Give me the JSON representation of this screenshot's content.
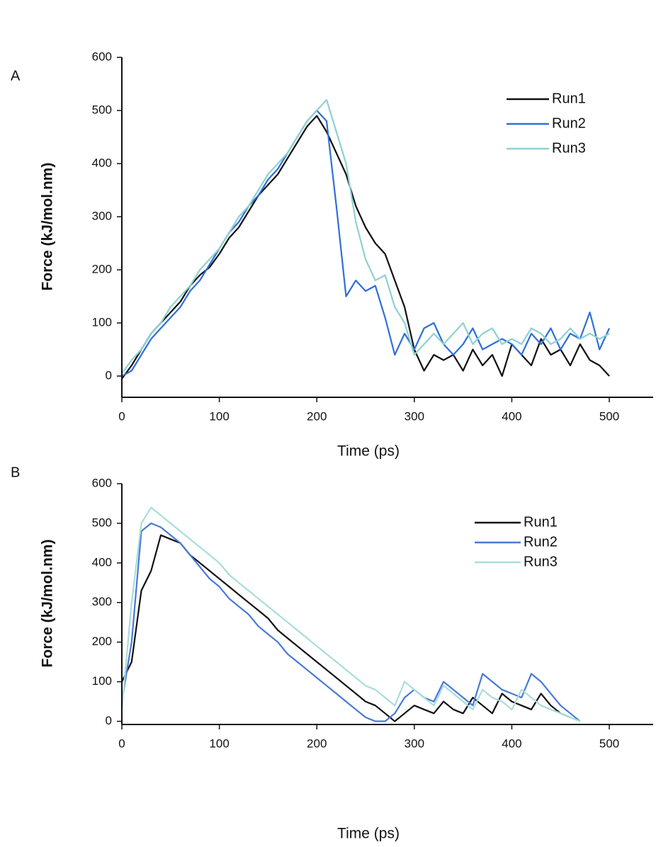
{
  "chart_data": [
    {
      "type": "line",
      "panel_label": "A",
      "xlabel": "Time (ps)",
      "ylabel": "Force (kJ/mol.nm)",
      "x": [
        0,
        10,
        20,
        30,
        40,
        50,
        60,
        70,
        80,
        90,
        100,
        110,
        120,
        130,
        140,
        150,
        160,
        170,
        180,
        190,
        200,
        210,
        220,
        230,
        240,
        250,
        260,
        270,
        280,
        290,
        300,
        310,
        320,
        330,
        340,
        350,
        360,
        370,
        380,
        390,
        400,
        410,
        420,
        430,
        440,
        450,
        460,
        470,
        480,
        490,
        500
      ],
      "series": [
        {
          "name": "Run1",
          "color": "#111111",
          "values": [
            -5,
            20,
            50,
            80,
            100,
            120,
            140,
            170,
            190,
            205,
            230,
            260,
            280,
            310,
            340,
            360,
            380,
            410,
            440,
            470,
            490,
            460,
            420,
            380,
            320,
            280,
            250,
            230,
            180,
            130,
            50,
            10,
            40,
            30,
            40,
            10,
            50,
            20,
            40,
            0,
            60,
            40,
            20,
            70,
            40,
            50,
            20,
            60,
            30,
            20,
            0
          ]
        },
        {
          "name": "Run2",
          "color": "#2f6fd8",
          "values": [
            0,
            10,
            40,
            70,
            90,
            110,
            130,
            160,
            180,
            210,
            240,
            270,
            290,
            320,
            340,
            370,
            390,
            420,
            450,
            480,
            500,
            480,
            320,
            150,
            180,
            160,
            170,
            110,
            40,
            80,
            50,
            90,
            100,
            60,
            40,
            60,
            90,
            50,
            60,
            70,
            60,
            40,
            80,
            60,
            90,
            50,
            80,
            70,
            120,
            50,
            90
          ]
        },
        {
          "name": "Run3",
          "color": "#8fd1d1",
          "values": [
            5,
            30,
            50,
            80,
            100,
            130,
            150,
            170,
            200,
            220,
            240,
            270,
            300,
            320,
            350,
            380,
            400,
            420,
            450,
            480,
            500,
            520,
            460,
            400,
            290,
            220,
            180,
            190,
            130,
            100,
            40,
            60,
            80,
            60,
            80,
            100,
            60,
            80,
            90,
            60,
            70,
            60,
            90,
            80,
            60,
            70,
            90,
            70,
            80,
            70,
            80
          ]
        }
      ],
      "xlim": [
        0,
        545
      ],
      "ylim": [
        -40,
        600
      ],
      "xticks": [
        0,
        100,
        200,
        300,
        400,
        500
      ],
      "yticks": [
        0,
        100,
        200,
        300,
        400,
        500,
        600
      ]
    },
    {
      "type": "line",
      "panel_label": "B",
      "xlabel": "Time (ps)",
      "ylabel": "Force (kJ/mol.nm)",
      "x": [
        0,
        10,
        20,
        30,
        40,
        50,
        60,
        70,
        80,
        90,
        100,
        110,
        120,
        130,
        140,
        150,
        160,
        170,
        180,
        190,
        200,
        210,
        220,
        230,
        240,
        250,
        260,
        270,
        280,
        290,
        300,
        310,
        320,
        330,
        340,
        350,
        360,
        370,
        380,
        390,
        400,
        410,
        420,
        430,
        440,
        450,
        460,
        470,
        480,
        490,
        500
      ],
      "series": [
        {
          "name": "Run1",
          "color": "#111111",
          "values": [
            100,
            150,
            330,
            380,
            470,
            460,
            450,
            420,
            400,
            380,
            360,
            340,
            320,
            300,
            280,
            260,
            230,
            210,
            190,
            170,
            150,
            130,
            110,
            90,
            70,
            50,
            40,
            20,
            0,
            20,
            40,
            30,
            20,
            50,
            30,
            20,
            60,
            40,
            20,
            70,
            50,
            40,
            30,
            70,
            40,
            20,
            10,
            null,
            null,
            null,
            null
          ]
        },
        {
          "name": "Run2",
          "color": "#4a78d8",
          "values": [
            50,
            200,
            480,
            500,
            490,
            470,
            450,
            420,
            390,
            360,
            340,
            310,
            290,
            270,
            240,
            220,
            200,
            170,
            150,
            130,
            110,
            90,
            70,
            50,
            30,
            10,
            0,
            0,
            20,
            60,
            80,
            60,
            50,
            100,
            80,
            60,
            40,
            120,
            100,
            80,
            70,
            60,
            120,
            100,
            70,
            40,
            20,
            0,
            null,
            null,
            null
          ]
        },
        {
          "name": "Run3",
          "color": "#a9dcdc",
          "values": [
            30,
            300,
            500,
            540,
            520,
            500,
            480,
            460,
            440,
            420,
            400,
            370,
            350,
            330,
            310,
            290,
            270,
            250,
            230,
            210,
            190,
            170,
            150,
            130,
            110,
            90,
            80,
            60,
            40,
            100,
            80,
            60,
            40,
            90,
            70,
            50,
            30,
            80,
            60,
            50,
            30,
            80,
            60,
            40,
            30,
            20,
            10,
            0,
            null,
            null,
            null
          ]
        }
      ],
      "xlim": [
        0,
        545
      ],
      "ylim": [
        -8,
        600
      ],
      "xticks": [
        0,
        100,
        200,
        300,
        400,
        500
      ],
      "yticks": [
        0,
        100,
        200,
        300,
        400,
        500,
        600
      ]
    }
  ]
}
